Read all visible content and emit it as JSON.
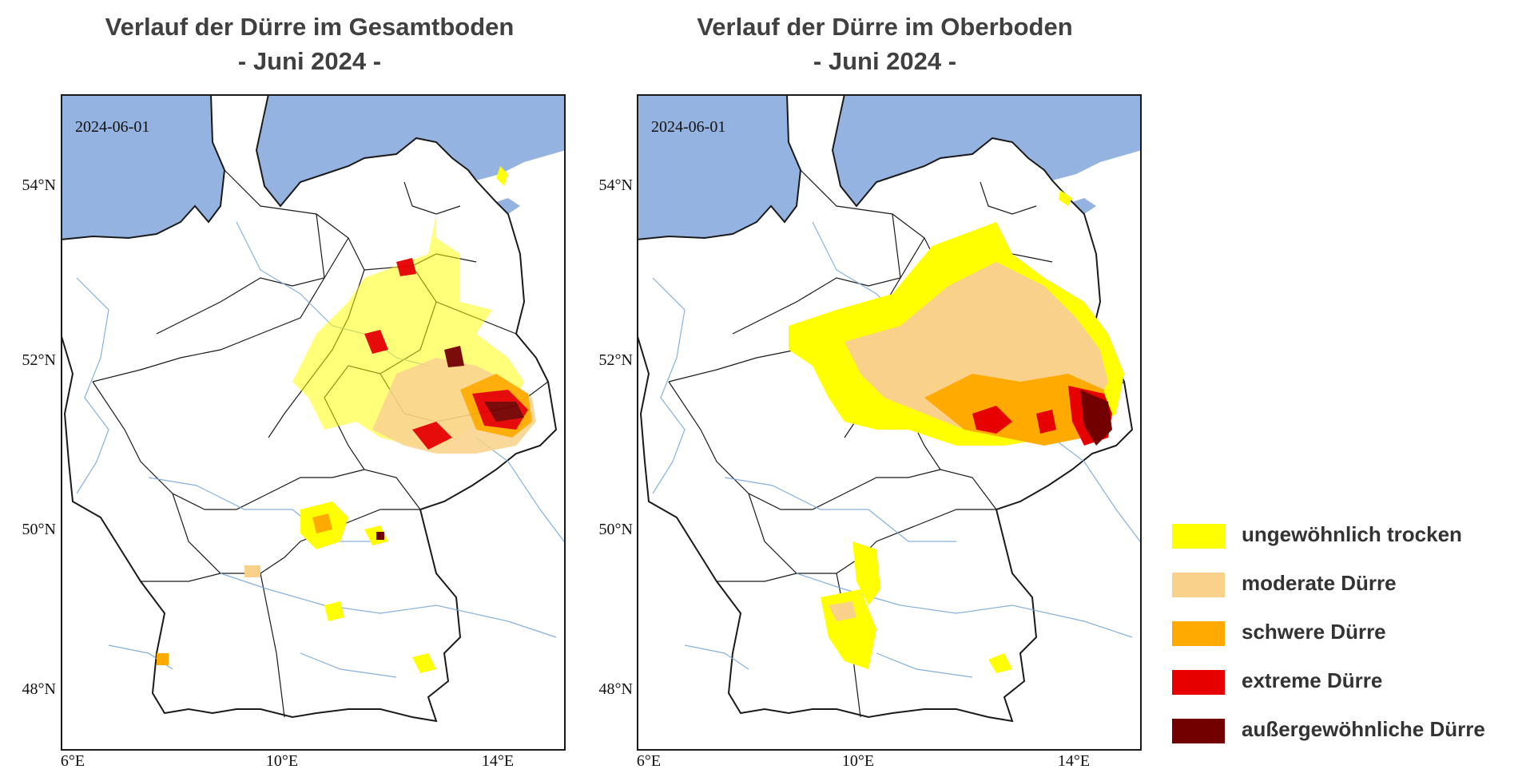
{
  "panels": [
    {
      "title_line1": "Verlauf der Dürre im Gesamtboden",
      "title_line2": "- Juni 2024 -",
      "date": "2024-06-01"
    },
    {
      "title_line1": "Verlauf der Dürre im Oberboden",
      "title_line2": "- Juni 2024 -",
      "date": "2024-06-01"
    }
  ],
  "axes": {
    "lat_labels": [
      "54°N",
      "52°N",
      "50°N",
      "48°N"
    ],
    "lon_labels": [
      "6°E",
      "10°E",
      "14°E"
    ]
  },
  "colors": {
    "sea": "#95b3e0",
    "land": "#ffffff",
    "border": "#1a1a1a",
    "river": "#7aa8d8"
  },
  "legend": [
    {
      "label": "ungewöhnlich trocken",
      "color": "#ffff00"
    },
    {
      "label": "moderate Dürre",
      "color": "#fad18a"
    },
    {
      "label": "schwere Dürre",
      "color": "#ffaa00"
    },
    {
      "label": "extreme Dürre",
      "color": "#e60000"
    },
    {
      "label": "außergewöhnliche Dürre",
      "color": "#730000"
    }
  ]
}
